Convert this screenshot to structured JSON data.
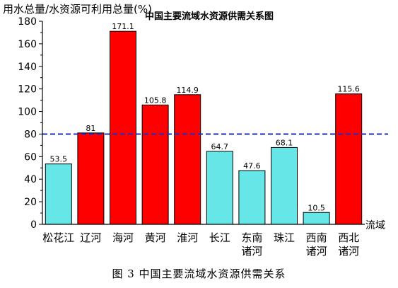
{
  "caption": "图 3  中国主要流域水资源供需关系",
  "chart_data": {
    "type": "bar",
    "title": "中国主要流域水资源供需关系图",
    "ylabel": "用水总量/水资源可利用总量(%)",
    "xlabel": "流域",
    "ylim": [
      0,
      180
    ],
    "yticks": [
      0,
      20,
      40,
      60,
      80,
      100,
      120,
      140,
      160,
      180
    ],
    "grid": false,
    "legend": "none",
    "reference_line": {
      "value": 80,
      "color": "#1f2fbf",
      "style": "dashed"
    },
    "colors": {
      "over": "#ff0000",
      "under": "#66e6e6",
      "axis": "#000000"
    },
    "categories": [
      [
        "松花江"
      ],
      [
        "辽河"
      ],
      [
        "海河"
      ],
      [
        "黄河"
      ],
      [
        "淮河"
      ],
      [
        "长江"
      ],
      [
        "东南",
        "诸河"
      ],
      [
        "珠江"
      ],
      [
        "西南",
        "诸河"
      ],
      [
        "西北",
        "诸河"
      ]
    ],
    "values": [
      53.5,
      81,
      171.1,
      105.8,
      114.9,
      64.7,
      47.6,
      68.1,
      10.5,
      115.6
    ],
    "value_labels": [
      "53.5",
      "81",
      "171.1",
      "105.8",
      "114.9",
      "64.7",
      "47.6",
      "68.1",
      "10.5",
      "115.6"
    ]
  }
}
